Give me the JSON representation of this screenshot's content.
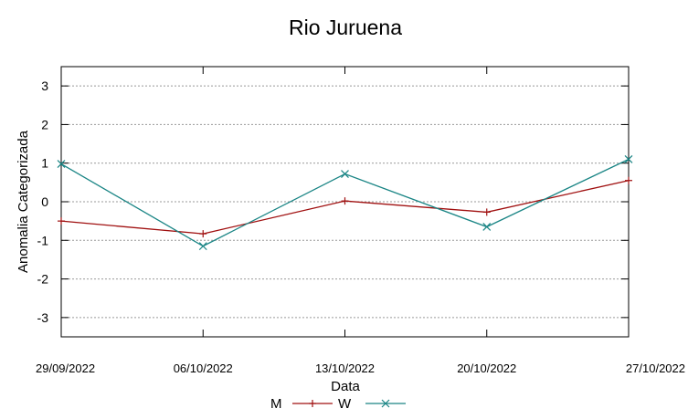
{
  "chart_data": {
    "type": "line",
    "title": "Rio Juruena",
    "xlabel": "Data",
    "ylabel": "Anomalia Categorizada",
    "categories": [
      "29/09/2022",
      "06/10/2022",
      "13/10/2022",
      "20/10/2022",
      "27/10/2022"
    ],
    "ylim": [
      -3.5,
      3.5
    ],
    "yticks": [
      -3,
      -2,
      -1,
      0,
      1,
      2,
      3
    ],
    "ytick_labels": [
      "-3",
      "-2",
      "-1",
      "0",
      "1",
      "2",
      "3"
    ],
    "grid": "horizontal dashed",
    "legend_position": "bottom",
    "series": [
      {
        "name": "M",
        "color": "#a01010",
        "marker": "plus",
        "values": [
          -0.5,
          -0.83,
          0.02,
          -0.27,
          0.55
        ]
      },
      {
        "name": "W",
        "color": "#1a8585",
        "marker": "x",
        "values": [
          0.98,
          -1.15,
          0.72,
          -0.65,
          1.1
        ]
      }
    ]
  }
}
